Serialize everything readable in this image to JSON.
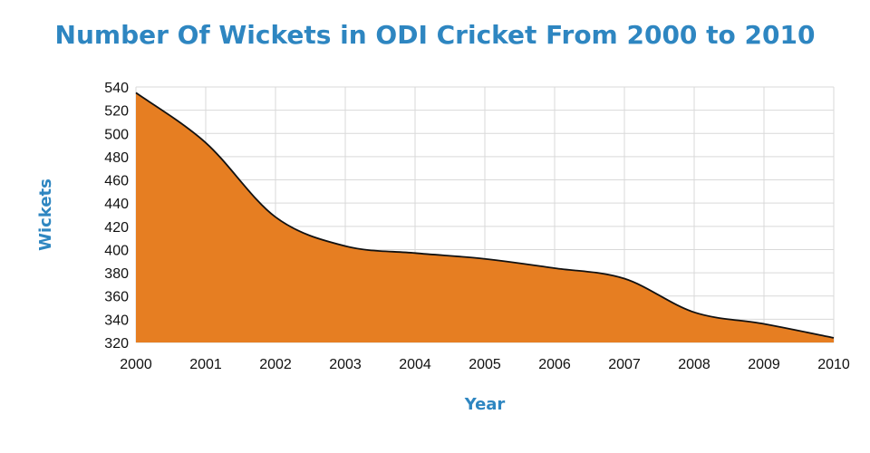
{
  "chart_data": {
    "type": "area",
    "title": "Number Of Wickets in ODI Cricket From 2000 to 2010",
    "xlabel": "Year",
    "ylabel": "Wickets",
    "x": [
      "2000",
      "2001",
      "2002",
      "2003",
      "2004",
      "2005",
      "2006",
      "2007",
      "2008",
      "2009",
      "2010"
    ],
    "series": [
      {
        "values": [
          535,
          492,
          428,
          403,
          397,
          392,
          384,
          375,
          346,
          336,
          324
        ]
      }
    ],
    "ylim": [
      320,
      540
    ],
    "yticks": [
      320,
      340,
      360,
      380,
      400,
      420,
      440,
      460,
      480,
      500,
      520,
      540
    ],
    "grid": true,
    "colors": {
      "fill": "#e67e22",
      "line": "#111111",
      "grid": "#d9d9d9",
      "title": "#2e86c1"
    }
  }
}
